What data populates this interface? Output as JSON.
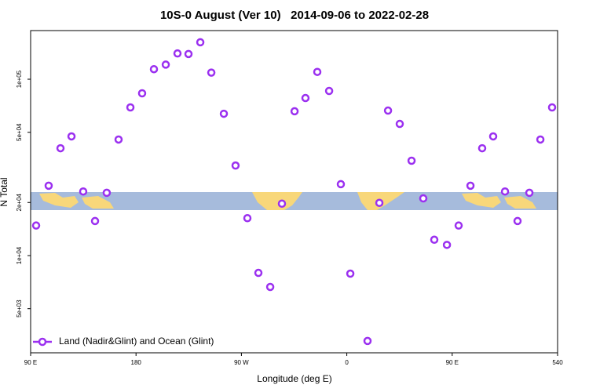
{
  "chart_data": {
    "type": "scatter",
    "title": "10S-0 August (Ver 10)   2014-09-06 to 2022-02-28",
    "x_label": "Longitude (deg E)",
    "y_label": "N Total",
    "log_y": true,
    "legend": "bottom-left",
    "xlim": [
      90,
      540
    ],
    "xticks": [
      {
        "value": 90,
        "label": "90 E"
      },
      180,
      {
        "value": 270,
        "label": "90 W"
      },
      {
        "value": 360,
        "label": "0"
      },
      {
        "value": 450,
        "label": "90 E"
      },
      540
    ],
    "ylim": [
      2810,
      188700
    ],
    "yticks": [
      {
        "value": 5000,
        "label": "5e+03"
      },
      {
        "value": 10000,
        "label": "1e+04"
      },
      {
        "value": 20000,
        "label": "2e+04"
      },
      {
        "value": 50000,
        "label": "5e+04"
      },
      {
        "value": 100000,
        "label": "1e+05"
      }
    ],
    "series": [
      {
        "name": "Land (Nadir&Glint) and Ocean (Glint)",
        "color": "#9b30f0",
        "x": [
          94.7,
          105.4,
          115.5,
          124.9,
          134.9,
          145,
          155,
          165.1,
          175.2,
          185.2,
          195.3,
          205.4,
          215.4,
          224.8,
          234.9,
          244.3,
          255,
          265,
          275.1,
          284.5,
          294.6,
          304.6,
          315.4,
          324.7,
          334.8,
          344.9,
          354.9,
          363,
          377.7,
          387.8,
          395.2,
          405.2,
          415.3,
          425.3,
          434.7,
          445.5,
          455.5,
          465.6,
          475.6,
          485,
          495.1,
          505.8,
          515.9,
          525.3,
          535.3
        ],
        "values": [
          14800,
          24900,
          40600,
          47400,
          23100,
          15700,
          22700,
          45500,
          69200,
          83200,
          114000,
          121000,
          140000,
          139000,
          162000,
          109000,
          63700,
          32400,
          16300,
          7980,
          6640,
          19700,
          65800,
          78200,
          110000,
          85800,
          25400,
          7900,
          3280,
          19900,
          66400,
          55800,
          34500,
          21100,
          12300,
          11500,
          14800,
          24900,
          40600,
          47400,
          23100,
          15700,
          22700,
          45500,
          69200
        ]
      }
    ]
  }
}
